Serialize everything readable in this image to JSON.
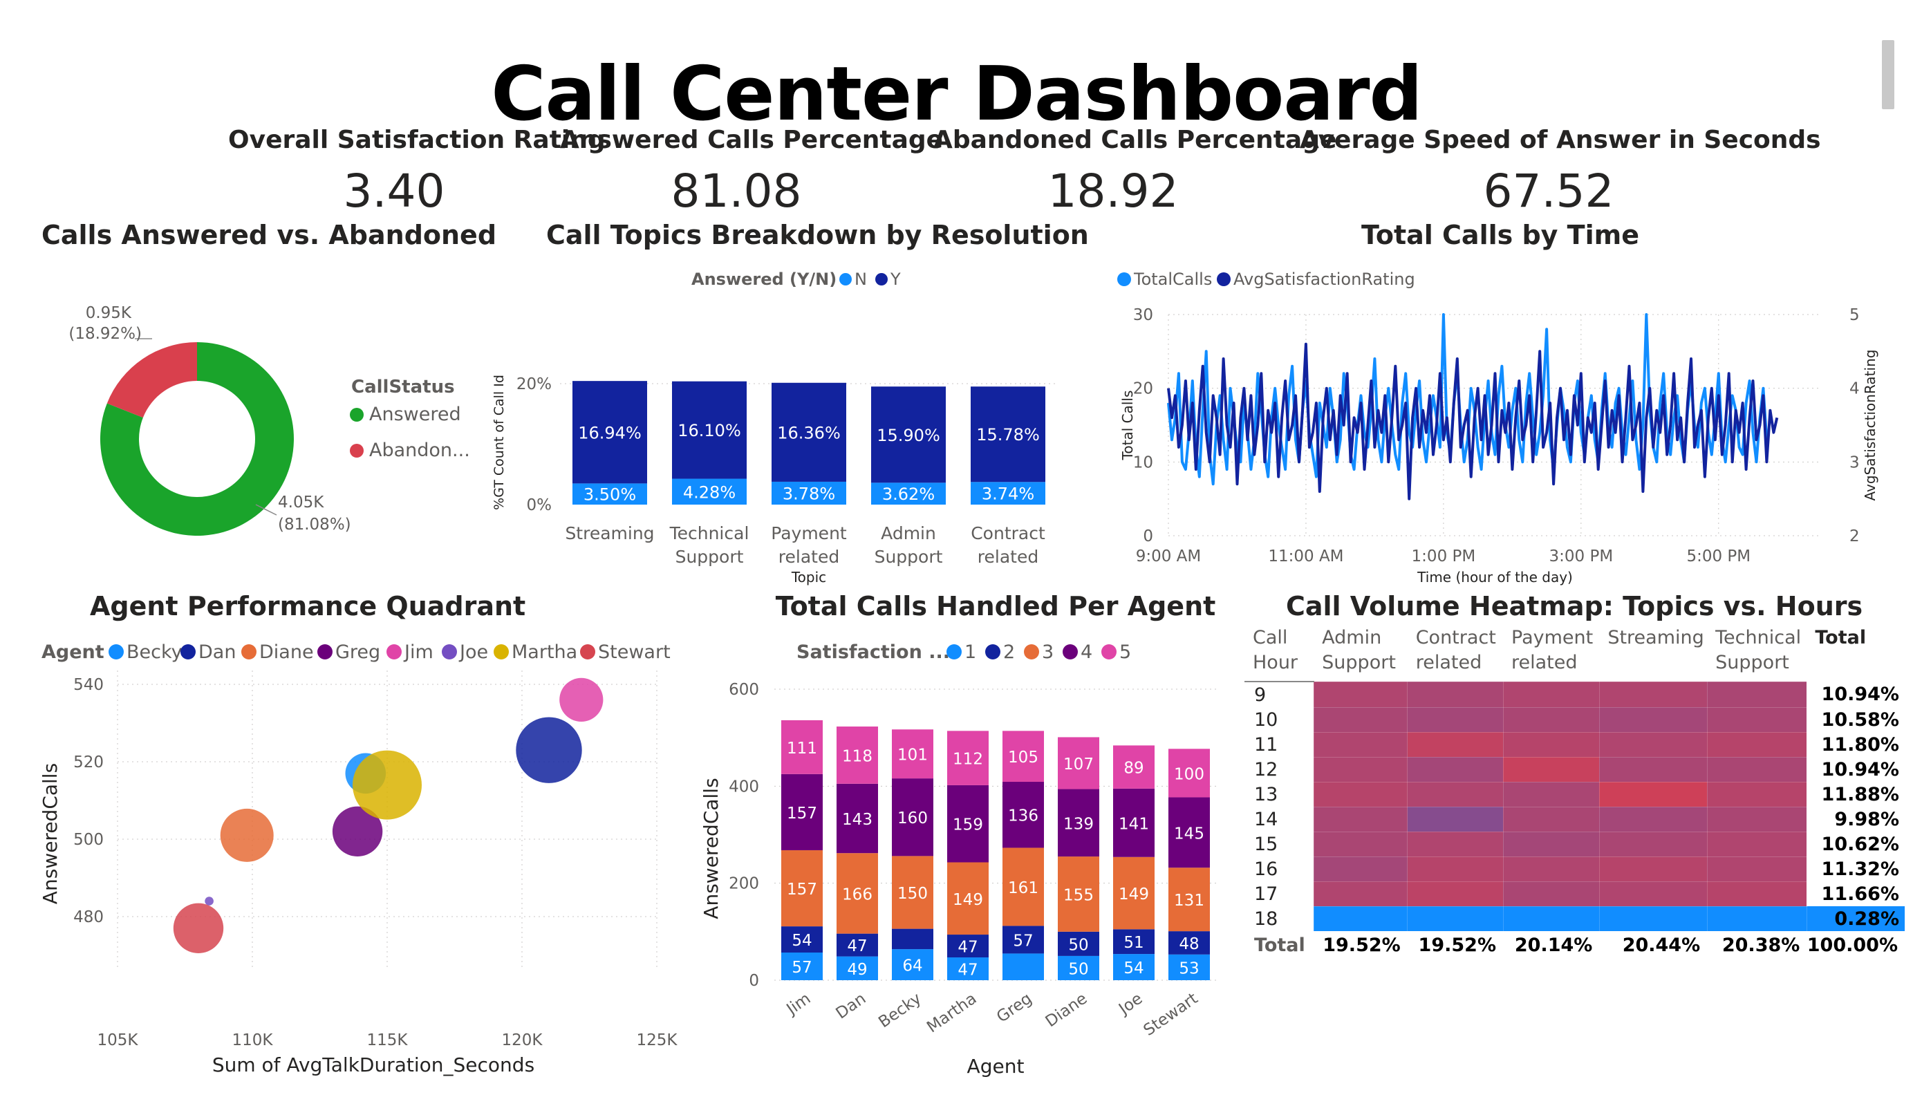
{
  "page_title": "Call Center Dashboard",
  "kpis": [
    {
      "label": "Overall Satisfaction Rating",
      "value": "3.40"
    },
    {
      "label": "Answered Calls Percentage",
      "value": "81.08"
    },
    {
      "label": "Abandoned Calls Percentage",
      "value": "18.92"
    },
    {
      "label": "Average Speed of Answer in Seconds",
      "value": "67.52"
    }
  ],
  "visual_titles": {
    "donut": "Calls Answered vs. Abandoned",
    "topics": "Call Topics Breakdown by Resolution",
    "time": "Total Calls by Time",
    "quadrant": "Agent Performance Quadrant",
    "per_agent": "Total Calls Handled Per Agent",
    "heatmap": "Call Volume Heatmap: Topics vs. Hours"
  },
  "colors": {
    "answered": "#1aa42b",
    "abandoned": "#d9404d",
    "n": "#118dff",
    "y": "#12239e",
    "sat1": "#118dff",
    "sat2": "#12239e",
    "sat3": "#e66c37",
    "sat4": "#6b007b",
    "sat5": "#e044a7",
    "heat_default": "#b04a70",
    "heat_last": "#118dff"
  },
  "chart_data": [
    {
      "type": "pie",
      "id": "donut",
      "legend_title": "CallStatus",
      "legend_position": "right",
      "slices": [
        {
          "name": "Answered",
          "legend": "Answered",
          "value": 4.05,
          "label": "4.05K",
          "pct": "(81.08%)"
        },
        {
          "name": "Abandoned",
          "legend": "Abandon...",
          "value": 0.95,
          "label": "0.95K",
          "pct": "(18.92%)"
        }
      ]
    },
    {
      "type": "bar",
      "id": "topics",
      "stacked": true,
      "legend_title": "Answered (Y/N)",
      "legend_position": "top-left",
      "xlabel": "Topic",
      "ylabel": "%GT Count of Call Id",
      "ylim": [
        0,
        20
      ],
      "yticks": [
        "20%",
        "0%"
      ],
      "categories": [
        "Streaming",
        "Technical\nSupport",
        "Payment\nrelated",
        "Admin\nSupport",
        "Contract\nrelated"
      ],
      "series": [
        {
          "name": "N",
          "values": [
            3.5,
            4.28,
            3.78,
            3.62,
            3.74
          ],
          "labels": [
            "3.50%",
            "4.28%",
            "3.78%",
            "3.62%",
            "3.74%"
          ]
        },
        {
          "name": "Y",
          "values": [
            16.94,
            16.1,
            16.36,
            15.9,
            15.78
          ],
          "labels": [
            "16.94%",
            "16.10%",
            "16.36%",
            "15.90%",
            "15.78%"
          ]
        }
      ]
    },
    {
      "type": "line",
      "id": "time",
      "legend_position": "top-left",
      "xlabel": "Time (hour of the day)",
      "ylabel": "Total Calls",
      "y2label": "AvgSatisfactionRating",
      "xlim": [
        9,
        18.5
      ],
      "ylim": [
        0,
        30
      ],
      "y2lim": [
        2,
        5
      ],
      "xticks": [
        "9:00 AM",
        "11:00 AM",
        "1:00 PM",
        "3:00 PM",
        "5:00 PM"
      ],
      "yticks": [
        "0",
        "10",
        "20",
        "30"
      ],
      "y2ticks": [
        "2",
        "3",
        "4",
        "5"
      ],
      "series": [
        {
          "name": "TotalCalls",
          "x_start_hour": 9,
          "step_minutes": 3,
          "values": [
            18,
            13,
            16,
            22,
            10,
            9,
            14,
            21,
            12,
            8,
            17,
            25,
            11,
            7,
            15,
            19,
            13,
            9,
            20,
            16,
            12,
            10,
            18,
            14,
            9,
            13,
            22,
            17,
            11,
            8,
            16,
            20,
            15,
            12,
            9,
            19,
            23,
            13,
            10,
            17,
            21,
            14,
            11,
            8,
            18,
            15,
            12,
            20,
            16,
            10,
            13,
            22,
            18,
            11,
            9,
            15,
            19,
            14,
            12,
            17,
            24,
            13,
            10,
            16,
            20,
            15,
            11,
            9,
            18,
            22,
            14,
            12,
            17,
            21,
            13,
            10,
            15,
            19,
            16,
            12,
            30,
            14,
            11,
            18,
            22,
            15,
            10,
            13,
            20,
            17,
            12,
            9,
            16,
            21,
            14,
            11,
            19,
            23,
            15,
            12,
            17,
            20,
            13,
            10,
            18,
            22,
            16,
            11,
            14,
            19,
            28,
            13,
            9,
            15,
            20,
            17,
            12,
            10,
            18,
            21,
            14,
            11,
            16,
            19,
            13,
            10,
            17,
            22,
            15,
            12,
            18,
            20,
            14,
            11,
            16,
            21,
            13,
            9,
            15,
            30,
            17,
            12,
            10,
            18,
            22,
            14,
            11,
            16,
            19,
            13,
            10,
            17,
            21,
            15,
            12,
            18,
            20,
            14,
            11,
            16,
            22,
            13,
            10,
            15,
            19,
            17,
            12,
            11,
            18,
            21,
            14,
            10,
            16,
            20,
            13
          ]
        },
        {
          "name": "AvgSatisfactionRating",
          "x_start_hour": 9,
          "step_minutes": 3,
          "values": [
            4.0,
            3.6,
            3.9,
            3.2,
            3.5,
            4.1,
            3.3,
            3.8,
            2.9,
            3.7,
            4.3,
            3.4,
            3.0,
            3.9,
            3.6,
            3.1,
            4.4,
            3.5,
            3.2,
            3.8,
            2.7,
            3.6,
            4.0,
            3.3,
            3.9,
            3.1,
            3.5,
            4.2,
            3.0,
            3.7,
            3.4,
            3.8,
            2.8,
            3.6,
            4.1,
            3.3,
            3.5,
            3.9,
            3.0,
            3.7,
            4.6,
            3.2,
            3.4,
            3.8,
            2.6,
            3.6,
            4.0,
            3.3,
            3.7,
            3.1,
            3.9,
            3.5,
            4.2,
            3.0,
            3.6,
            3.4,
            3.8,
            2.9,
            3.5,
            4.1,
            3.2,
            3.7,
            3.4,
            3.9,
            3.0,
            3.6,
            4.3,
            3.3,
            3.5,
            3.8,
            2.5,
            3.6,
            4.0,
            3.2,
            3.7,
            3.4,
            3.9,
            3.1,
            3.5,
            4.2,
            3.3,
            3.6,
            3.0,
            3.8,
            4.4,
            3.2,
            3.5,
            3.7,
            2.8,
            3.6,
            4.0,
            3.3,
            3.9,
            3.1,
            3.5,
            4.2,
            3.0,
            3.7,
            3.4,
            3.8,
            2.9,
            3.6,
            4.1,
            3.3,
            3.5,
            3.9,
            3.0,
            3.7,
            4.5,
            3.2,
            3.4,
            3.8,
            2.7,
            3.6,
            4.0,
            3.3,
            3.7,
            3.1,
            3.9,
            3.5,
            4.2,
            3.0,
            3.6,
            3.4,
            3.8,
            2.9,
            3.5,
            4.1,
            3.2,
            3.7,
            3.4,
            3.9,
            3.0,
            3.6,
            4.3,
            3.3,
            3.5,
            3.8,
            2.6,
            3.6,
            4.0,
            3.2,
            3.7,
            3.4,
            3.9,
            3.1,
            3.5,
            4.2,
            3.3,
            3.6,
            3.0,
            3.8,
            4.4,
            3.2,
            3.5,
            3.7,
            2.8,
            3.6,
            4.0,
            3.3,
            3.9,
            3.1,
            3.5,
            4.2,
            3.0,
            3.7,
            3.4,
            3.8,
            2.9,
            3.6,
            4.1,
            3.3,
            3.5,
            3.9,
            3.0,
            3.7,
            3.4,
            3.6
          ]
        }
      ]
    },
    {
      "type": "scatter",
      "id": "quadrant",
      "legend_title": "Agent",
      "legend_position": "top-left",
      "xlabel": "Sum of AvgTalkDuration_Seconds",
      "ylabel": "AnsweredCalls",
      "xlim": [
        105000,
        125000
      ],
      "ylim": [
        470,
        540
      ],
      "xticks": [
        "105K",
        "110K",
        "115K",
        "120K",
        "125K"
      ],
      "yticks": [
        "480",
        "500",
        "520",
        "540"
      ],
      "points": [
        {
          "name": "Becky",
          "x": 114200,
          "y": 517,
          "size": 0.55,
          "color": "#118dff"
        },
        {
          "name": "Dan",
          "x": 121000,
          "y": 523,
          "size": 0.95,
          "color": "#12239e"
        },
        {
          "name": "Diane",
          "x": 109800,
          "y": 501,
          "size": 0.75,
          "color": "#e66c37"
        },
        {
          "name": "Greg",
          "x": 113900,
          "y": 502,
          "size": 0.7,
          "color": "#6b007b"
        },
        {
          "name": "Jim",
          "x": 122200,
          "y": 536,
          "size": 0.6,
          "color": "#e044a7"
        },
        {
          "name": "Joe",
          "x": 108400,
          "y": 484,
          "size": 0.05,
          "color": "#744ec2"
        },
        {
          "name": "Martha",
          "x": 115000,
          "y": 514,
          "size": 1.0,
          "color": "#d9b300"
        },
        {
          "name": "Stewart",
          "x": 108000,
          "y": 477,
          "size": 0.7,
          "color": "#d64550"
        }
      ]
    },
    {
      "type": "bar",
      "id": "per_agent",
      "stacked": true,
      "legend_title": "Satisfaction ...",
      "legend_position": "top-left",
      "xlabel": "Agent",
      "ylabel": "AnsweredCalls",
      "ylim": [
        0,
        600
      ],
      "yticks": [
        "0",
        "200",
        "400",
        "600"
      ],
      "categories": [
        "Jim",
        "Dan",
        "Becky",
        "Martha",
        "Greg",
        "Diane",
        "Joe",
        "Stewart"
      ],
      "series": [
        {
          "name": "1",
          "values": [
            57,
            49,
            64,
            47,
            55,
            50,
            54,
            53
          ],
          "labels": [
            "57",
            "49",
            "64",
            "47",
            "",
            "50",
            "54",
            "53"
          ]
        },
        {
          "name": "2",
          "values": [
            54,
            47,
            42,
            47,
            57,
            50,
            51,
            48
          ],
          "labels": [
            "54",
            "47",
            "",
            "47",
            "57",
            "50",
            "51",
            "48"
          ]
        },
        {
          "name": "3",
          "values": [
            157,
            166,
            150,
            149,
            161,
            155,
            149,
            131
          ],
          "labels": [
            "157",
            "166",
            "150",
            "149",
            "161",
            "155",
            "149",
            "131"
          ]
        },
        {
          "name": "4",
          "values": [
            157,
            143,
            160,
            159,
            136,
            139,
            141,
            145
          ],
          "labels": [
            "157",
            "143",
            "160",
            "159",
            "136",
            "139",
            "141",
            "145"
          ]
        },
        {
          "name": "5",
          "values": [
            111,
            118,
            101,
            112,
            105,
            107,
            89,
            100
          ],
          "labels": [
            "111",
            "118",
            "101",
            "112",
            "105",
            "107",
            "89",
            "100"
          ]
        }
      ]
    },
    {
      "type": "heatmap",
      "id": "heatmap",
      "header": [
        "Call\nHour",
        "Admin\nSupport",
        "Contract\nrelated",
        "Payment\nrelated",
        "Streaming",
        "Technical\nSupport",
        "Total"
      ],
      "rows": [
        {
          "hour": "9",
          "total": "10.94%",
          "intensity": [
            0.55,
            0.5,
            0.55,
            0.55,
            0.5
          ]
        },
        {
          "hour": "10",
          "total": "10.58%",
          "intensity": [
            0.5,
            0.45,
            0.5,
            0.45,
            0.5
          ]
        },
        {
          "hour": "11",
          "total": "11.80%",
          "intensity": [
            0.55,
            0.7,
            0.6,
            0.55,
            0.6
          ]
        },
        {
          "hour": "12",
          "total": "10.94%",
          "intensity": [
            0.55,
            0.45,
            0.75,
            0.5,
            0.5
          ]
        },
        {
          "hour": "13",
          "total": "11.88%",
          "intensity": [
            0.6,
            0.55,
            0.5,
            0.8,
            0.6
          ]
        },
        {
          "hour": "14",
          "total": "9.98%",
          "intensity": [
            0.5,
            0.2,
            0.5,
            0.45,
            0.5
          ]
        },
        {
          "hour": "15",
          "total": "10.62%",
          "intensity": [
            0.5,
            0.55,
            0.45,
            0.5,
            0.55
          ]
        },
        {
          "hour": "16",
          "total": "11.32%",
          "intensity": [
            0.45,
            0.6,
            0.55,
            0.6,
            0.55
          ]
        },
        {
          "hour": "17",
          "total": "11.66%",
          "intensity": [
            0.55,
            0.65,
            0.5,
            0.55,
            0.6
          ]
        },
        {
          "hour": "18",
          "total": "0.28%",
          "intensity": [
            0,
            0,
            0,
            0,
            0
          ]
        }
      ],
      "footer": [
        "Total",
        "19.52%",
        "19.52%",
        "20.14%",
        "20.44%",
        "20.38%",
        "100.00%"
      ]
    }
  ]
}
